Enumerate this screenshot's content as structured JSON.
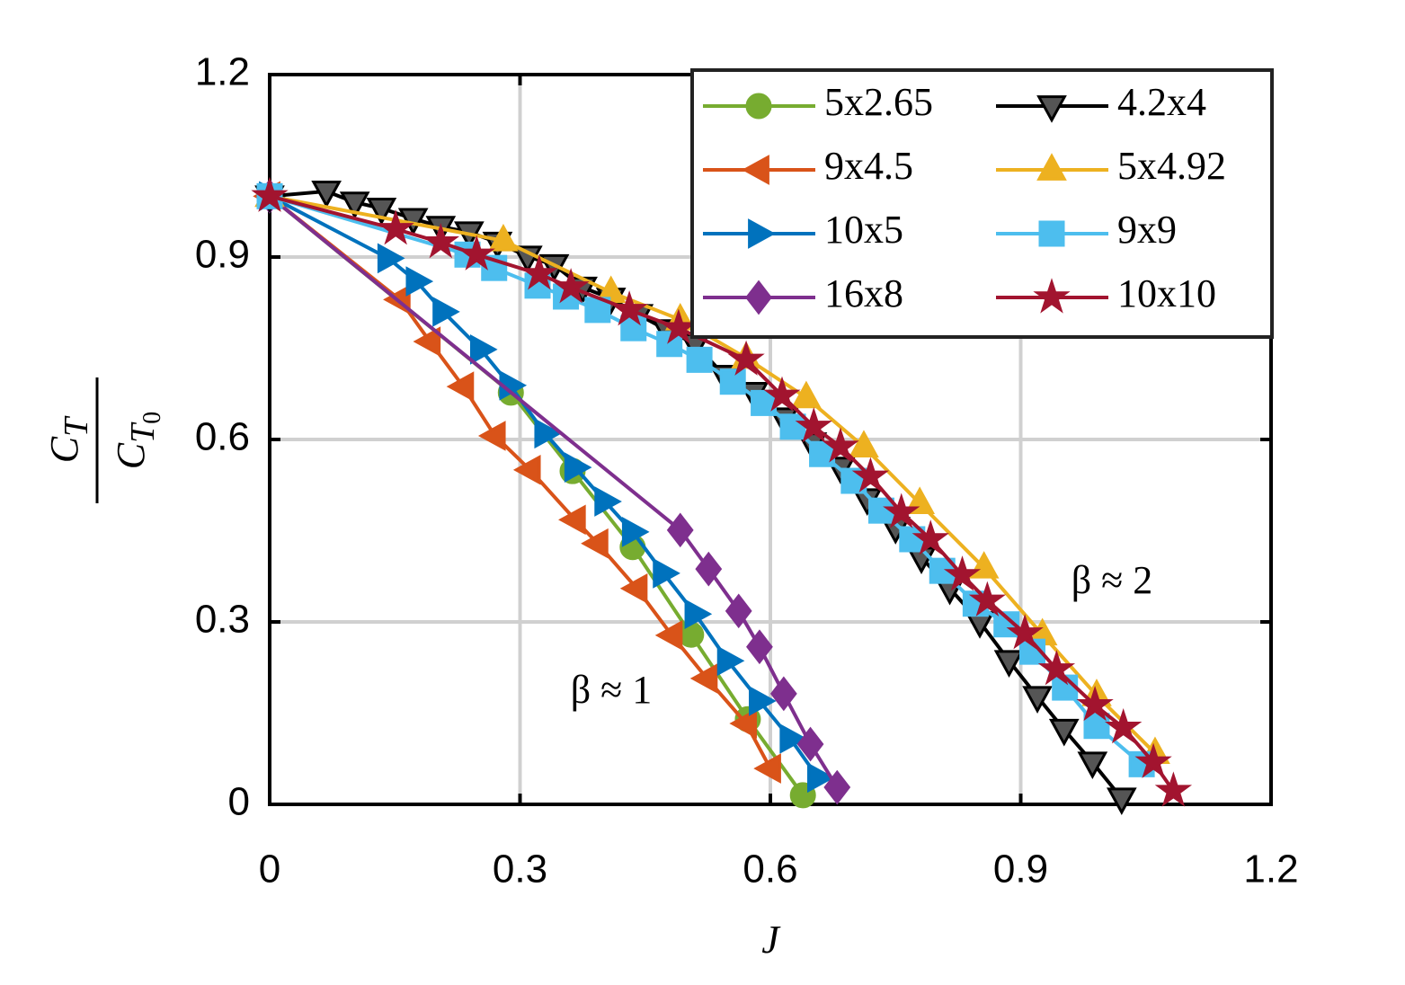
{
  "chart_data": {
    "type": "line",
    "xlabel": "J",
    "ylabel_numerator": [
      "C",
      "T"
    ],
    "ylabel_denominator": [
      "C",
      "T",
      "0"
    ],
    "xlim": [
      0,
      1.2
    ],
    "xticks": [
      0,
      0.3,
      0.6,
      0.9,
      1.2
    ],
    "ylim": [
      0,
      1.2
    ],
    "yticks": [
      0,
      0.3,
      0.6,
      0.9,
      1.2
    ],
    "grid": true,
    "legend": "upper right",
    "annotations": [
      "β ≈ 1",
      "β ≈ 2"
    ],
    "series": [
      {
        "name": "5x2.65",
        "color": "#77ac30",
        "marker": "circle",
        "x": [
          0,
          0.289,
          0.363,
          0.435,
          0.505,
          0.573,
          0.639
        ],
        "values": [
          1.0,
          0.677,
          0.548,
          0.423,
          0.279,
          0.14,
          0.015
        ]
      },
      {
        "name": "9x4.5",
        "color": "#d95319",
        "marker": "triangle-left",
        "x": [
          0,
          0.156,
          0.192,
          0.232,
          0.27,
          0.312,
          0.366,
          0.393,
          0.44,
          0.482,
          0.524,
          0.571,
          0.6
        ],
        "values": [
          1.0,
          0.83,
          0.761,
          0.687,
          0.606,
          0.55,
          0.468,
          0.429,
          0.355,
          0.278,
          0.207,
          0.133,
          0.059
        ]
      },
      {
        "name": "10x5",
        "color": "#0072bd",
        "marker": "triangle-right",
        "x": [
          0,
          0.142,
          0.176,
          0.208,
          0.253,
          0.288,
          0.33,
          0.366,
          0.402,
          0.435,
          0.472,
          0.51,
          0.549,
          0.587,
          0.624,
          0.657
        ],
        "values": [
          1.0,
          0.898,
          0.86,
          0.81,
          0.748,
          0.689,
          0.61,
          0.554,
          0.498,
          0.448,
          0.38,
          0.313,
          0.236,
          0.17,
          0.108,
          0.044
        ]
      },
      {
        "name": "16x8",
        "color": "#7e2f8e",
        "marker": "diamond",
        "x": [
          0,
          0.492,
          0.526,
          0.562,
          0.587,
          0.616,
          0.648,
          0.68
        ],
        "values": [
          1.0,
          0.451,
          0.387,
          0.318,
          0.259,
          0.182,
          0.099,
          0.028
        ]
      },
      {
        "name": "4.2x4",
        "color": "#000000",
        "marker": "triangle-down",
        "x": [
          0,
          0.068,
          0.102,
          0.134,
          0.172,
          0.205,
          0.239,
          0.273,
          0.309,
          0.341,
          0.375,
          0.409,
          0.442,
          0.476,
          0.51,
          0.545,
          0.58,
          0.616,
          0.65,
          0.684,
          0.716,
          0.75,
          0.781,
          0.815,
          0.851,
          0.886,
          0.92,
          0.952,
          0.986,
          1.021
        ],
        "values": [
          1.0,
          1.008,
          0.99,
          0.98,
          0.963,
          0.95,
          0.941,
          0.924,
          0.901,
          0.887,
          0.85,
          0.832,
          0.805,
          0.78,
          0.757,
          0.705,
          0.677,
          0.635,
          0.594,
          0.554,
          0.502,
          0.455,
          0.406,
          0.355,
          0.3,
          0.236,
          0.177,
          0.123,
          0.069,
          0.01
        ]
      },
      {
        "name": "5x4.92",
        "color": "#edb120",
        "marker": "triangle-up",
        "x": [
          0,
          0.28,
          0.409,
          0.492,
          0.571,
          0.643,
          0.712,
          0.779,
          0.856,
          0.926,
          0.991,
          1.061
        ],
        "values": [
          1.0,
          0.927,
          0.842,
          0.797,
          0.734,
          0.669,
          0.588,
          0.495,
          0.389,
          0.279,
          0.179,
          0.084
        ]
      },
      {
        "name": "9x9",
        "color": "#4dbeee",
        "marker": "square",
        "x": [
          0,
          0.237,
          0.269,
          0.321,
          0.355,
          0.393,
          0.436,
          0.479,
          0.515,
          0.555,
          0.592,
          0.627,
          0.662,
          0.7,
          0.733,
          0.77,
          0.806,
          0.846,
          0.883,
          0.914,
          0.953,
          0.991,
          1.045
        ],
        "values": [
          1.0,
          0.904,
          0.882,
          0.853,
          0.835,
          0.813,
          0.783,
          0.757,
          0.731,
          0.695,
          0.66,
          0.621,
          0.576,
          0.532,
          0.483,
          0.436,
          0.384,
          0.33,
          0.296,
          0.251,
          0.192,
          0.129,
          0.066
        ]
      },
      {
        "name": "10x10",
        "color": "#a2142f",
        "marker": "star",
        "x": [
          0,
          0.151,
          0.205,
          0.248,
          0.323,
          0.361,
          0.431,
          0.49,
          0.571,
          0.614,
          0.652,
          0.684,
          0.72,
          0.757,
          0.792,
          0.83,
          0.86,
          0.905,
          0.943,
          0.989,
          1.023,
          1.059,
          1.083
        ],
        "values": [
          1.0,
          0.946,
          0.924,
          0.904,
          0.872,
          0.85,
          0.813,
          0.783,
          0.731,
          0.672,
          0.621,
          0.588,
          0.539,
          0.48,
          0.436,
          0.377,
          0.335,
          0.281,
          0.222,
          0.163,
          0.126,
          0.069,
          0.022
        ]
      }
    ]
  }
}
